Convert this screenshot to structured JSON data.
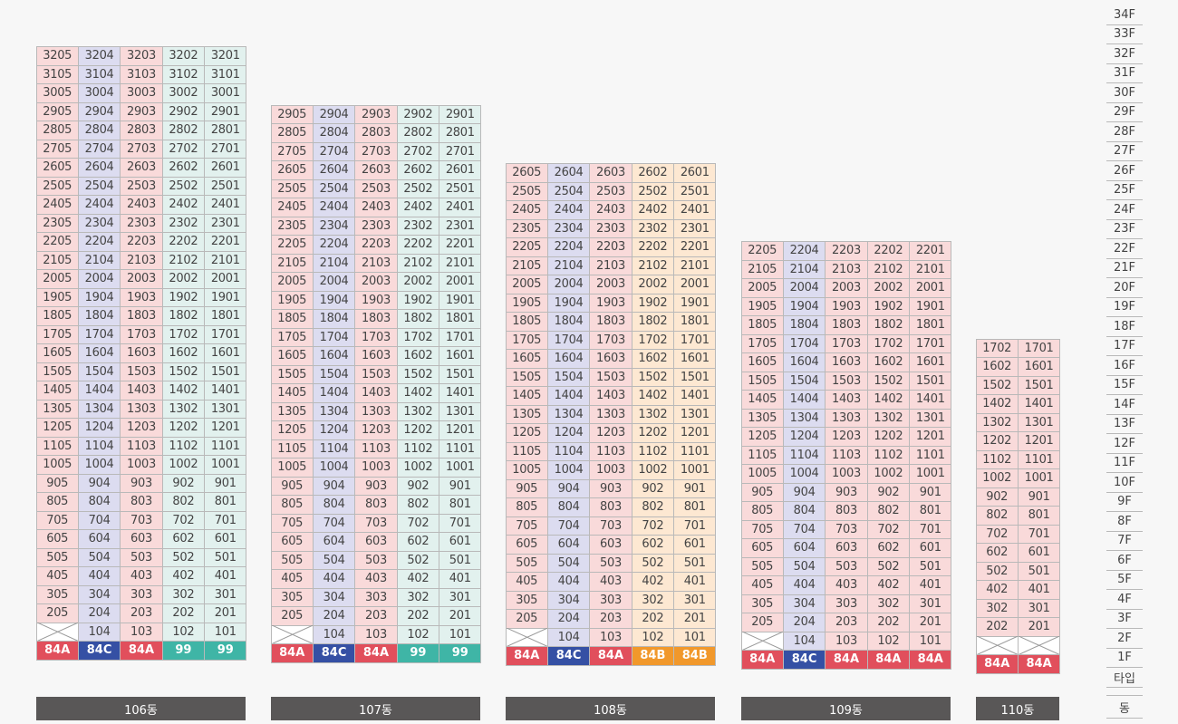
{
  "colors": {
    "84A": "#e14f5c",
    "84C": "#3550a4",
    "99": "#3fb5a6",
    "84B": "#f1982b",
    "pink": "#f9dada",
    "lav": "#dcdcf0",
    "mint": "#e2f1ee",
    "peach": "#fde8d2",
    "dong_bar": "#595757"
  },
  "axis": {
    "floors": [
      "34F",
      "33F",
      "32F",
      "31F",
      "30F",
      "29F",
      "28F",
      "27F",
      "26F",
      "25F",
      "24F",
      "23F",
      "22F",
      "21F",
      "20F",
      "19F",
      "18F",
      "17F",
      "16F",
      "15F",
      "14F",
      "13F",
      "12F",
      "11F",
      "10F",
      "9F",
      "8F",
      "7F",
      "6F",
      "5F",
      "4F",
      "3F",
      "2F",
      "1F"
    ],
    "type_label": "타입",
    "dong_label": "동"
  },
  "buildings": [
    {
      "name": "106동",
      "top_floor": 32,
      "lines": [
        "05",
        "04",
        "03",
        "02",
        "01"
      ],
      "fills": [
        "pink",
        "lav",
        "pink",
        "mint",
        "mint"
      ],
      "types": [
        "84A",
        "84C",
        "84A",
        "99",
        "99"
      ],
      "empty_first": [
        true,
        false,
        false,
        false,
        false
      ]
    },
    {
      "name": "107동",
      "top_floor": 29,
      "lines": [
        "05",
        "04",
        "03",
        "02",
        "01"
      ],
      "fills": [
        "pink",
        "lav",
        "pink",
        "mint",
        "mint"
      ],
      "types": [
        "84A",
        "84C",
        "84A",
        "99",
        "99"
      ],
      "empty_first": [
        true,
        false,
        false,
        false,
        false
      ]
    },
    {
      "name": "108동",
      "top_floor": 26,
      "lines": [
        "05",
        "04",
        "03",
        "02",
        "01"
      ],
      "fills": [
        "pink",
        "lav",
        "pink",
        "peach",
        "peach"
      ],
      "types": [
        "84A",
        "84C",
        "84A",
        "84B",
        "84B"
      ],
      "empty_first": [
        true,
        false,
        false,
        false,
        false
      ]
    },
    {
      "name": "109동",
      "top_floor": 22,
      "lines": [
        "05",
        "04",
        "03",
        "02",
        "01"
      ],
      "fills": [
        "pink",
        "lav",
        "pink",
        "pink",
        "pink"
      ],
      "types": [
        "84A",
        "84C",
        "84A",
        "84A",
        "84A"
      ],
      "empty_first": [
        true,
        false,
        false,
        false,
        false
      ]
    },
    {
      "name": "110동",
      "top_floor": 17,
      "lines": [
        "02",
        "01"
      ],
      "fills": [
        "pink",
        "pink"
      ],
      "types": [
        "84A",
        "84A"
      ],
      "empty_first": [
        true,
        true
      ]
    }
  ]
}
